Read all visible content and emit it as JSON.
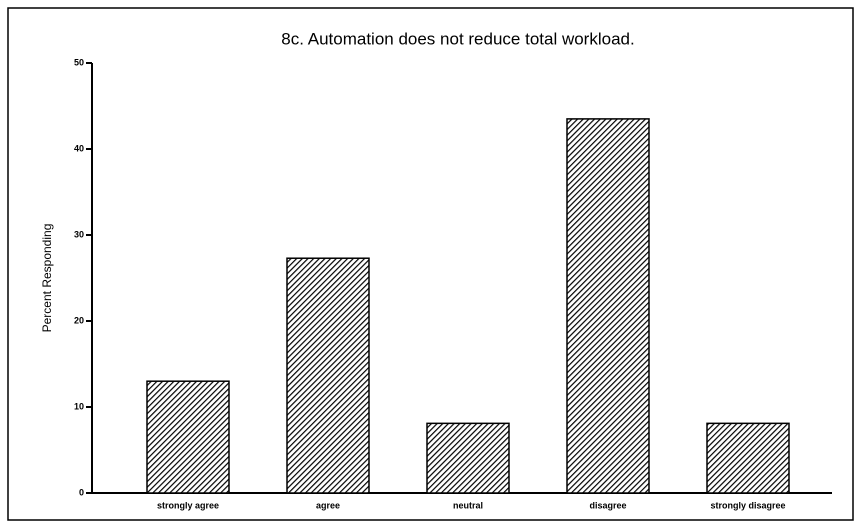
{
  "chart_data": {
    "type": "bar",
    "title": "8c. Automation does not reduce total workload.",
    "y_label": "Percent Responding",
    "categories": [
      "strongly agree",
      "agree",
      "neutral",
      "disagree",
      "strongly disagree"
    ],
    "values": [
      13,
      27.3,
      8.1,
      43.5,
      8.1
    ],
    "color": "#000000",
    "ylim": [
      0,
      50
    ],
    "yticks": [
      0,
      10,
      20,
      30,
      40,
      50
    ],
    "grid": false
  }
}
